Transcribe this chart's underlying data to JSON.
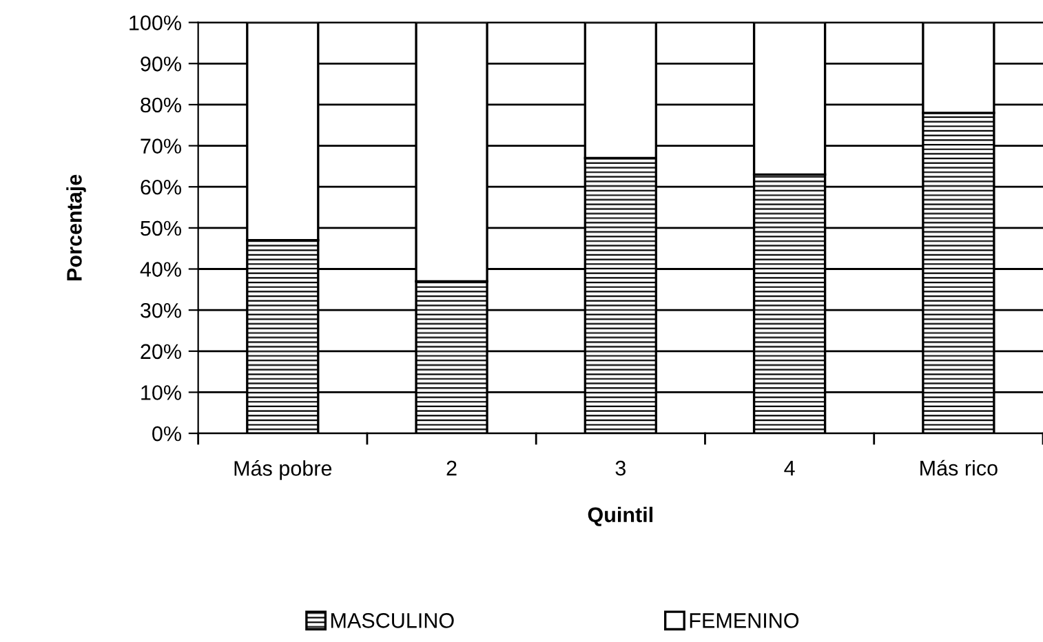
{
  "chart_data": {
    "type": "bar",
    "stacked": true,
    "xlabel": "Quintil",
    "ylabel": "Porcentaje",
    "categories": [
      "Más pobre",
      "2",
      "3",
      "4",
      "Más rico"
    ],
    "series": [
      {
        "name": "MASCULINO",
        "color": "#000000",
        "values": [
          47,
          37,
          67,
          63,
          78
        ]
      },
      {
        "name": "FEMENINO",
        "color": "#ffffff",
        "values": [
          53,
          63,
          33,
          37,
          22
        ]
      }
    ],
    "ylim": [
      0,
      100
    ],
    "yticks": [
      {
        "value": 0,
        "label": "0%"
      },
      {
        "value": 10,
        "label": "10%"
      },
      {
        "value": 20,
        "label": "20%"
      },
      {
        "value": 30,
        "label": "30%"
      },
      {
        "value": 40,
        "label": "40%"
      },
      {
        "value": 50,
        "label": "50%"
      },
      {
        "value": 60,
        "label": "60%"
      },
      {
        "value": 70,
        "label": "70%"
      },
      {
        "value": 80,
        "label": "80%"
      },
      {
        "value": 90,
        "label": "90%"
      },
      {
        "value": 100,
        "label": "100%"
      }
    ],
    "grid": "y",
    "legend": "bottom"
  }
}
